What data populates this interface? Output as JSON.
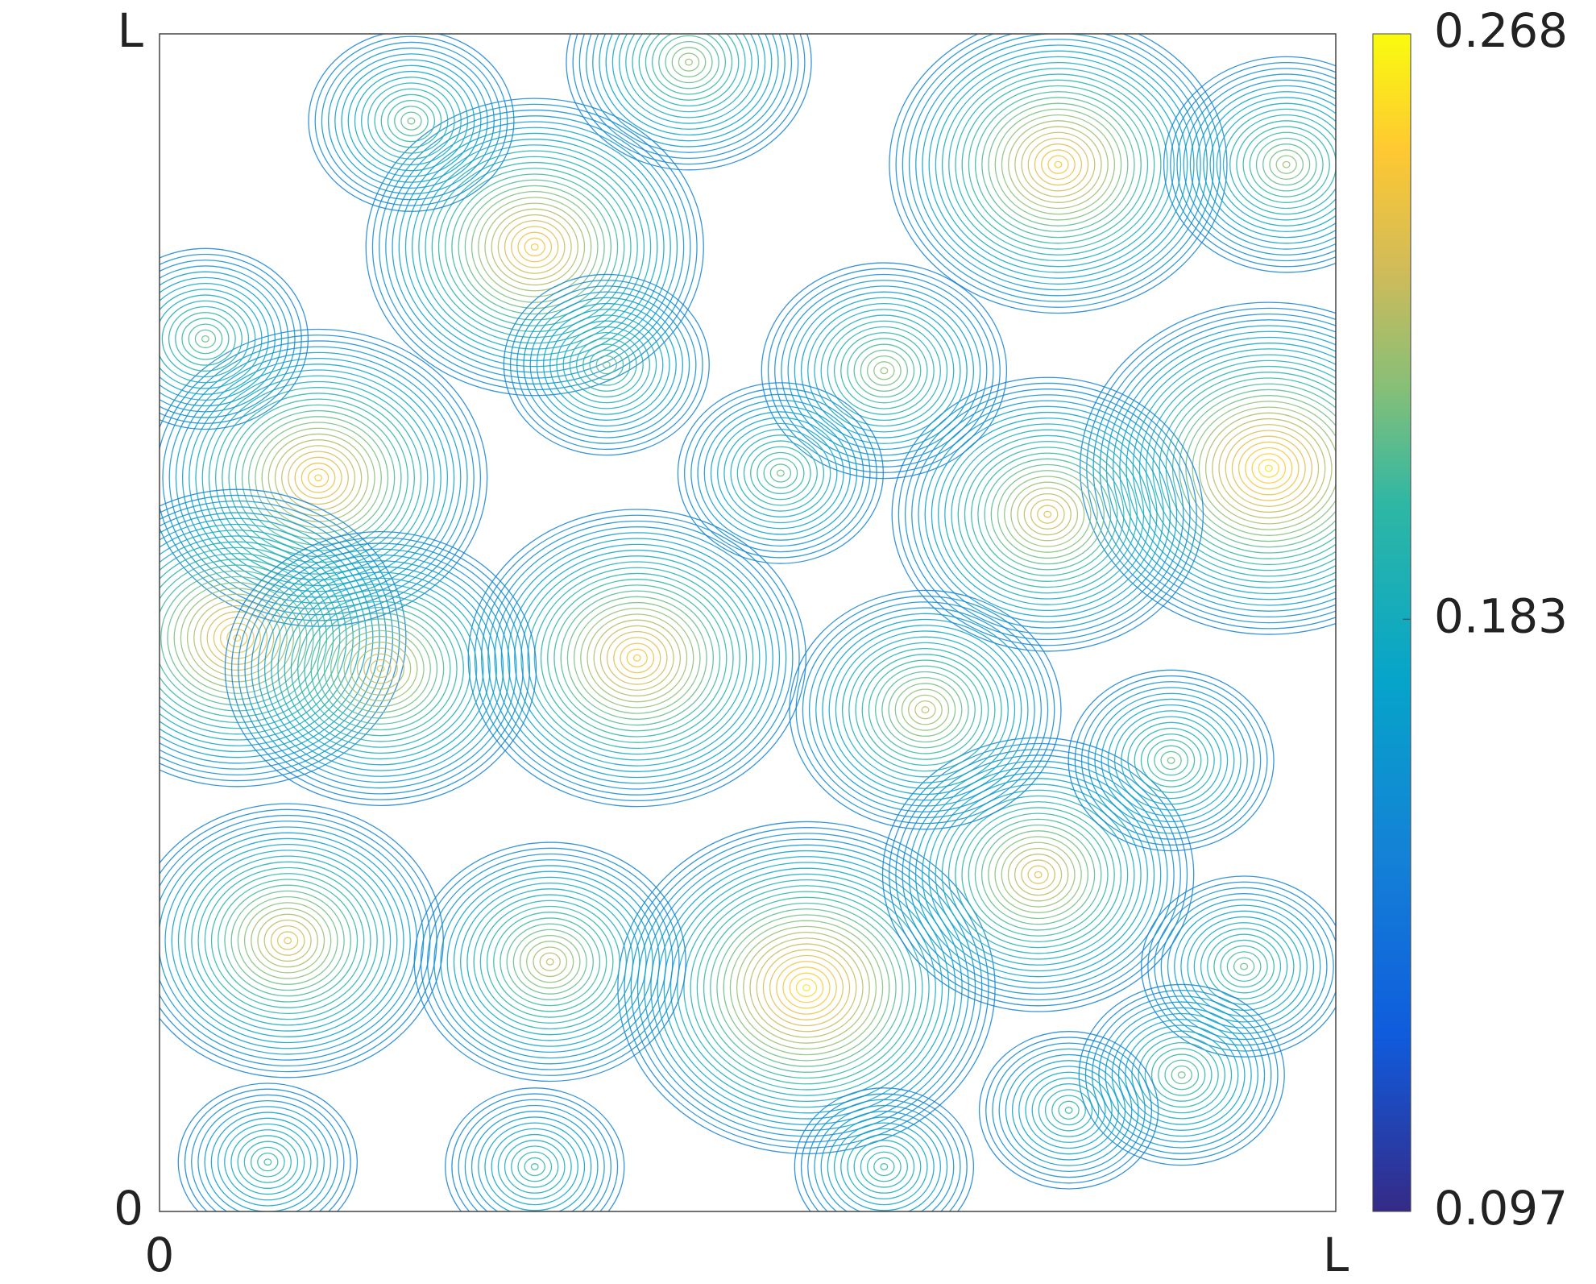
{
  "chart_data": {
    "type": "contour",
    "colormap": "parula",
    "xlim": [
      0,
      1
    ],
    "ylim": [
      0,
      1
    ],
    "xticks": [
      {
        "value": 0,
        "label": "0"
      },
      {
        "value": 1,
        "label": "L"
      }
    ],
    "yticks": [
      {
        "value": 0,
        "label": "0"
      },
      {
        "value": 1,
        "label": "L"
      }
    ],
    "clim": [
      0.097,
      0.268
    ],
    "cticks": [
      0.097,
      0.183,
      0.268
    ],
    "peaks": {
      "x": [
        0.943,
        0.55,
        0.764,
        0.319,
        0.135,
        0.406,
        0.066,
        0.188,
        0.755,
        0.109,
        0.747,
        0.651,
        0.332,
        0.616,
        0.958,
        0.38,
        0.922,
        0.869,
        0.45,
        0.214,
        0.039,
        0.528,
        0.86,
        0.319,
        0.616,
        0.092,
        0.773
      ],
      "y": [
        0.631,
        0.19,
        0.889,
        0.819,
        0.623,
        0.47,
        0.487,
        0.461,
        0.592,
        0.23,
        0.286,
        0.426,
        0.212,
        0.714,
        0.889,
        0.719,
        0.208,
        0.116,
        0.976,
        0.926,
        0.741,
        0.627,
        0.383,
        0.038,
        0.038,
        0.042,
        0.086
      ],
      "values": [
        0.26,
        0.26,
        0.25,
        0.25,
        0.25,
        0.25,
        0.25,
        0.24,
        0.24,
        0.24,
        0.24,
        0.23,
        0.23,
        0.22,
        0.22,
        0.21,
        0.21,
        0.21,
        0.22,
        0.21,
        0.21,
        0.21,
        0.21,
        0.2,
        0.2,
        0.2,
        0.2
      ]
    }
  }
}
